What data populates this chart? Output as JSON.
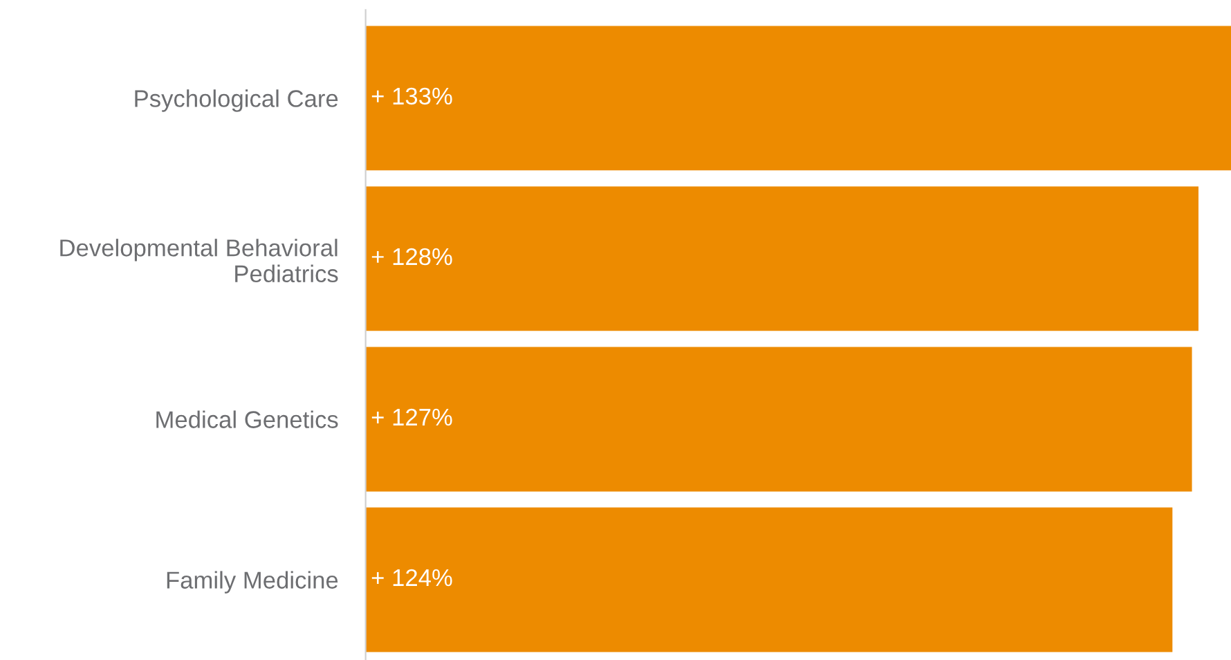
{
  "chart_data": {
    "type": "bar",
    "orientation": "horizontal",
    "categories": [
      "Psychological Care",
      "Developmental Behavioral\nPediatrics",
      "Medical Genetics",
      "Family Medicine"
    ],
    "values": [
      133,
      128,
      127,
      124
    ],
    "value_labels": [
      "+ 133%",
      "+ 128%",
      "+ 127%",
      "+ 124%"
    ],
    "color": "#ed8b00",
    "grid": false,
    "legend": false,
    "tick_labels": "y"
  }
}
